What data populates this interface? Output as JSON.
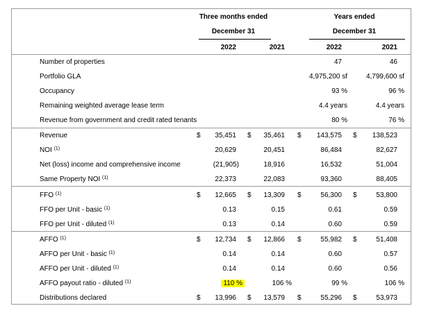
{
  "header": {
    "group1_line1": "Three months ended",
    "group1_line2": "December 31",
    "group2_line1": "Years ended",
    "group2_line2": "December 31",
    "col_2022_q": "2022",
    "col_2021_q": "2021",
    "col_2022_y": "2022",
    "col_2021_y": "2021"
  },
  "footnote_mark": "(1)",
  "currency": "$",
  "rows": [
    {
      "label": "Number of properties",
      "q22": "",
      "q21": "",
      "y22": "47",
      "y21": "46"
    },
    {
      "label": "Portfolio GLA",
      "q22": "",
      "q21": "",
      "y22": "4,975,200 sf",
      "y21": "4,799,600 sf"
    },
    {
      "label": "Occupancy",
      "q22": "",
      "q21": "",
      "y22": "93 %",
      "y21": "96 %"
    },
    {
      "label": "Remaining weighted average lease term",
      "q22": "",
      "q21": "",
      "y22": "4.4 years",
      "y21": "4.4 years"
    },
    {
      "label": "Revenue from government and credit rated tenants",
      "q22": "",
      "q21": "",
      "y22": "80 %",
      "y21": "76 %"
    },
    {
      "label": "Revenue",
      "q22": "35,451",
      "q21": "35,461",
      "y22": "143,575",
      "y21": "138,523"
    },
    {
      "label": "NOI",
      "q22": "20,629",
      "q21": "20,451",
      "y22": "86,484",
      "y21": "82,627"
    },
    {
      "label": "Net (loss) income and comprehensive income",
      "q22": "(21,905)",
      "q21": "18,916",
      "y22": "16,532",
      "y21": "51,004"
    },
    {
      "label": "Same Property NOI",
      "q22": "22,373",
      "q21": "22,083",
      "y22": "93,360",
      "y21": "88,405"
    },
    {
      "label": "FFO",
      "q22": "12,665",
      "q21": "13,309",
      "y22": "56,300",
      "y21": "53,800"
    },
    {
      "label": "FFO per Unit - basic",
      "q22": "0.13",
      "q21": "0.15",
      "y22": "0.61",
      "y21": "0.59"
    },
    {
      "label": "FFO per Unit - diluted",
      "q22": "0.13",
      "q21": "0.14",
      "y22": "0.60",
      "y21": "0.59"
    },
    {
      "label": "AFFO",
      "q22": "12,734",
      "q21": "12,866",
      "y22": "55,982",
      "y21": "51,408"
    },
    {
      "label": "AFFO per Unit - basic",
      "q22": "0.14",
      "q21": "0.14",
      "y22": "0.60",
      "y21": "0.57"
    },
    {
      "label": "AFFO per Unit - diluted",
      "q22": "0.14",
      "q21": "0.14",
      "y22": "0.60",
      "y21": "0.56"
    },
    {
      "label": "AFFO payout ratio - diluted",
      "q22": "110 %",
      "q21": "106 %",
      "y22": "99 %",
      "y21": "106 %"
    },
    {
      "label": "Distributions declared",
      "q22": "13,996",
      "q21": "13,579",
      "y22": "55,296",
      "y21": "53,973"
    }
  ],
  "highlight_color": "#ffff00",
  "border_color": "#9a9a9a"
}
